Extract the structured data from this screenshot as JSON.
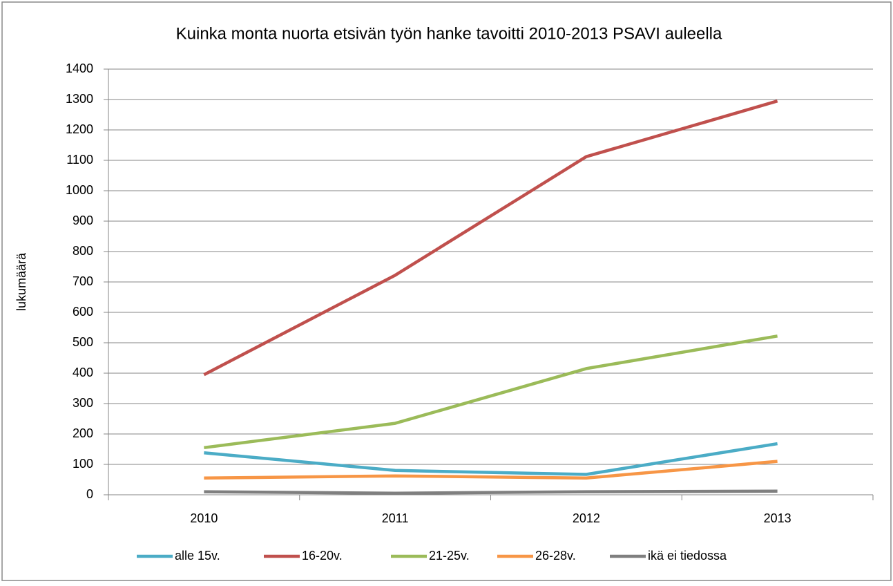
{
  "chart_data": {
    "type": "line",
    "title": "Kuinka monta nuorta etsivän työn hanke tavoitti 2010-2013 PSAVI auleella",
    "ylabel": "lukumäärä",
    "categories": [
      "2010",
      "2011",
      "2012",
      "2013"
    ],
    "series": [
      {
        "name": "alle 15v.",
        "color": "#4bacc6",
        "values": [
          138,
          80,
          67,
          168
        ]
      },
      {
        "name": "16-20v.",
        "color": "#c0504d",
        "values": [
          395,
          722,
          1112,
          1295
        ]
      },
      {
        "name": "21-25v.",
        "color": "#9bbb59",
        "values": [
          155,
          235,
          415,
          522
        ]
      },
      {
        "name": "26-28v.",
        "color": "#f79646",
        "values": [
          55,
          62,
          55,
          110
        ]
      },
      {
        "name": "ikä ei tiedossa",
        "color": "#7f7f7f",
        "values": [
          10,
          5,
          10,
          12
        ]
      }
    ],
    "ylim": [
      0,
      1400
    ],
    "yticks": [
      0,
      100,
      200,
      300,
      400,
      500,
      600,
      700,
      800,
      900,
      1000,
      1100,
      1200,
      1300,
      1400
    ],
    "grid": true,
    "legend": "bottom"
  }
}
